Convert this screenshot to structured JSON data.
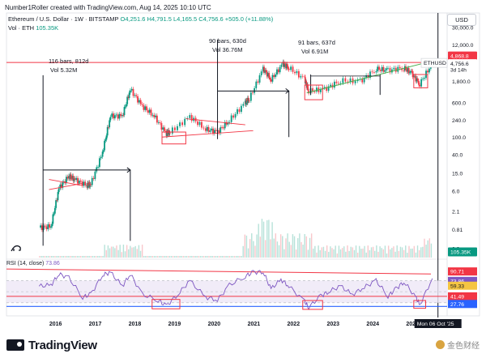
{
  "header": {
    "created_by": "Number1Roller created with TradingView.com, Aug 14, 2025 10:10 UTC"
  },
  "symbol": {
    "name": "Ethereum / U.S. Dollar · 1W · BITSTAMP",
    "ohlc": "O4,251.6 H4,791.5 L4,165.5 C4,756.6 +505.0 (+11.88%)",
    "vol_label": "Vol · ETH",
    "vol_value": "105.35K"
  },
  "price_scale": {
    "currency_button": "USD",
    "ticks": [
      "30,000.0",
      "12,000.0",
      "4,800.0",
      "1,800.0",
      "600.0",
      "240.0",
      "100.0",
      "40.0",
      "15.0",
      "6.0",
      "2.1",
      "0.81",
      "0.3"
    ],
    "current_price": "4,756.6",
    "countdown": "3d 14h",
    "resistance_label": "4,868.8",
    "symbol_tag": "ETHUSD",
    "volume_tag": "105.35K"
  },
  "rsi": {
    "label": "RSI (14, close)",
    "value": "73.86",
    "tags": [
      "90.71",
      "73.86",
      "59.33",
      "41.49",
      "27.76"
    ],
    "colors": {
      "line": "#7e57c2",
      "band": "#ede7f6"
    }
  },
  "annotations": {
    "cycle1_bars": "116 bars, 812d",
    "cycle1_vol": "Vol 5.32M",
    "cycle2_bars": "90 bars, 630d",
    "cycle2_vol": "Vol 36.76M",
    "cycle3_bars": "91 bars, 637d",
    "cycle3_vol": "Vol 6.91M"
  },
  "time_axis": {
    "years": [
      "2016",
      "2017",
      "2018",
      "2019",
      "2020",
      "2021",
      "2022",
      "2023",
      "2024",
      "2025"
    ],
    "crosshair_label": "Mon 06 Oct '25"
  },
  "colors": {
    "up": "#089981",
    "down": "#f23645",
    "resistance": "#f23645",
    "trendline": "#4caf50"
  },
  "footer": {
    "brand": "TradingView",
    "watermark": "金色财经"
  },
  "chart_data": {
    "type": "candlestick",
    "title": "Ethereum / U.S. Dollar · 1W · BITSTAMP",
    "y_scale": "log",
    "ylim": [
      0.3,
      30000
    ],
    "x_range": [
      "2015",
      "2025-10"
    ],
    "series": [
      {
        "name": "ETHUSD close",
        "x": [
          2015.7,
          2016.0,
          2016.2,
          2016.45,
          2016.6,
          2016.9,
          2017.0,
          2017.3,
          2017.5,
          2017.8,
          2018.0,
          2018.3,
          2018.6,
          2018.9,
          2019.0,
          2019.5,
          2019.9,
          2020.2,
          2020.5,
          2020.9,
          2021.0,
          2021.35,
          2021.55,
          2021.85,
          2022.0,
          2022.4,
          2022.5,
          2022.9,
          2023.3,
          2023.8,
          2024.2,
          2024.5,
          2024.9,
          2025.1,
          2025.3,
          2025.62
        ],
        "y": [
          0.9,
          0.95,
          7,
          13,
          11,
          8,
          8.5,
          45,
          300,
          300,
          1200,
          500,
          300,
          120,
          130,
          290,
          150,
          130,
          240,
          600,
          730,
          3500,
          2000,
          4500,
          3700,
          2000,
          1100,
          1200,
          1900,
          1800,
          3500,
          3200,
          3700,
          2700,
          1600,
          4756.6
        ]
      }
    ],
    "rsi": {
      "name": "RSI (14, close)",
      "ylim": [
        15,
        100
      ],
      "x": [
        2015.7,
        2016.0,
        2016.2,
        2016.45,
        2016.8,
        2017.0,
        2017.3,
        2017.5,
        2017.8,
        2018.0,
        2018.3,
        2018.7,
        2018.9,
        2019.2,
        2019.5,
        2019.9,
        2020.2,
        2020.5,
        2020.9,
        2021.1,
        2021.35,
        2021.55,
        2021.8,
        2022.0,
        2022.4,
        2022.5,
        2022.8,
        2023.0,
        2023.3,
        2023.6,
        2023.9,
        2024.2,
        2024.5,
        2024.7,
        2024.9,
        2025.2,
        2025.3,
        2025.62
      ],
      "y": [
        60,
        62,
        82,
        75,
        40,
        45,
        80,
        85,
        60,
        82,
        45,
        35,
        24,
        45,
        70,
        40,
        35,
        62,
        78,
        85,
        86,
        55,
        72,
        60,
        32,
        22,
        42,
        50,
        60,
        45,
        58,
        70,
        42,
        55,
        68,
        40,
        26,
        73.86
      ]
    },
    "levels": {
      "resistance": 4868.8,
      "rsi_upper": 90.71,
      "rsi_mid": 59.33,
      "rsi_low": 41.49,
      "rsi_floor": 27.76
    }
  }
}
